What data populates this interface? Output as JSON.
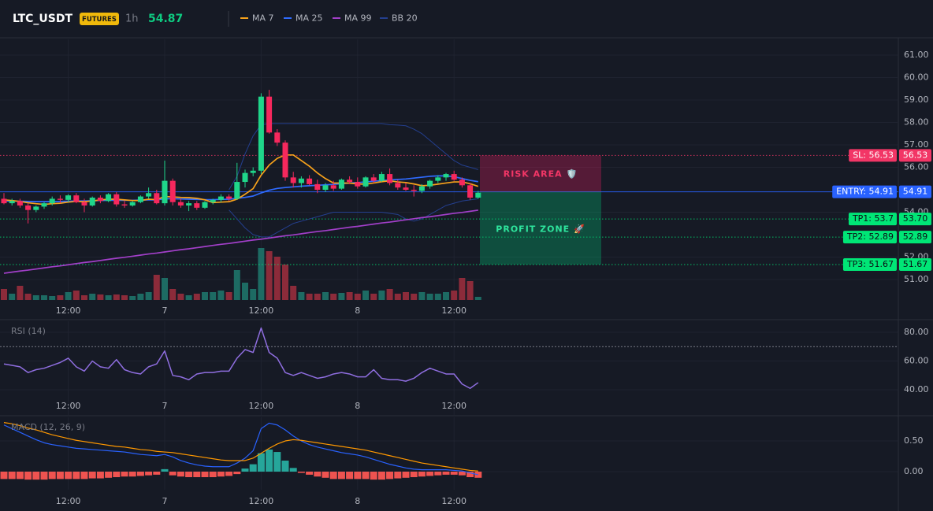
{
  "header": {
    "symbol": "LTC_USDT",
    "market": "FUTURES",
    "interval": "1h",
    "last_price": 54.87
  },
  "chart_data": [
    {
      "type": "candlestick",
      "categories": [
        null,
        null,
        null,
        null,
        null,
        null,
        null,
        null,
        "12:00",
        null,
        null,
        null,
        null,
        null,
        null,
        null,
        null,
        null,
        null,
        null,
        "7",
        null,
        null,
        null,
        null,
        null,
        null,
        null,
        null,
        null,
        null,
        null,
        "12:00",
        null,
        null,
        null,
        null,
        null,
        null,
        null,
        null,
        null,
        null,
        null,
        "8",
        null,
        null,
        null,
        null,
        null,
        null,
        null,
        null,
        null,
        null,
        null,
        "12:00",
        null,
        null,
        null
      ],
      "open": [
        54.6,
        54.4,
        54.5,
        54.3,
        54.1,
        54.25,
        54.4,
        54.6,
        54.55,
        54.75,
        54.45,
        54.3,
        54.65,
        54.5,
        54.8,
        54.35,
        54.3,
        54.45,
        54.7,
        54.85,
        54.4,
        55.4,
        54.45,
        54.3,
        54.4,
        54.2,
        54.45,
        54.55,
        54.7,
        54.6,
        55.35,
        55.75,
        55.85,
        59.15,
        57.55,
        57.1,
        55.55,
        55.3,
        55.5,
        55.25,
        55.0,
        55.2,
        55.05,
        55.45,
        55.35,
        55.15,
        55.55,
        55.4,
        55.7,
        55.3,
        55.1,
        55.0,
        54.95,
        55.15,
        55.4,
        55.55,
        55.7,
        55.45,
        55.2,
        54.65
      ],
      "high": [
        54.85,
        54.6,
        54.6,
        54.4,
        54.3,
        54.45,
        54.7,
        54.75,
        54.8,
        54.85,
        54.6,
        54.7,
        54.75,
        54.85,
        54.9,
        54.5,
        54.5,
        54.75,
        55.1,
        55.0,
        56.3,
        55.5,
        54.6,
        54.5,
        54.5,
        54.5,
        54.6,
        54.8,
        54.8,
        56.2,
        55.9,
        56.0,
        59.3,
        59.45,
        57.7,
        57.2,
        55.8,
        55.6,
        55.65,
        55.45,
        55.3,
        55.4,
        55.5,
        55.6,
        55.55,
        55.6,
        55.7,
        55.8,
        55.95,
        55.45,
        55.3,
        55.2,
        55.25,
        55.45,
        55.65,
        55.75,
        55.85,
        55.55,
        55.3,
        54.95
      ],
      "low": [
        54.35,
        54.3,
        54.2,
        53.5,
        54.0,
        54.15,
        54.3,
        54.4,
        54.45,
        54.4,
        54.0,
        54.25,
        54.4,
        54.45,
        54.25,
        54.2,
        54.25,
        54.4,
        54.6,
        54.35,
        54.3,
        54.3,
        54.2,
        54.05,
        54.1,
        54.15,
        54.35,
        54.45,
        54.5,
        54.55,
        55.1,
        55.6,
        55.7,
        57.5,
        56.95,
        55.4,
        55.1,
        55.1,
        55.2,
        54.85,
        54.9,
        54.95,
        55.0,
        55.25,
        55.05,
        55.1,
        55.3,
        55.35,
        55.2,
        55.0,
        54.95,
        54.7,
        54.85,
        55.05,
        55.3,
        55.4,
        55.4,
        55.1,
        54.55,
        54.6
      ],
      "close": [
        54.4,
        54.5,
        54.3,
        54.1,
        54.25,
        54.4,
        54.6,
        54.55,
        54.75,
        54.45,
        54.3,
        54.65,
        54.5,
        54.8,
        54.35,
        54.3,
        54.45,
        54.7,
        54.85,
        54.4,
        55.4,
        54.45,
        54.3,
        54.4,
        54.2,
        54.45,
        54.55,
        54.7,
        54.6,
        55.35,
        55.75,
        55.85,
        59.15,
        57.55,
        57.1,
        55.55,
        55.3,
        55.5,
        55.25,
        55.0,
        55.2,
        55.05,
        55.45,
        55.35,
        55.15,
        55.55,
        55.4,
        55.7,
        55.3,
        55.1,
        55.0,
        54.95,
        55.15,
        55.4,
        55.55,
        55.7,
        55.45,
        55.2,
        54.65,
        54.87
      ],
      "volume": [
        14,
        8,
        18,
        8,
        6,
        6,
        5,
        6,
        10,
        12,
        6,
        8,
        7,
        6,
        7,
        6,
        5,
        8,
        10,
        32,
        28,
        14,
        8,
        6,
        8,
        10,
        10,
        12,
        10,
        38,
        22,
        14,
        66,
        62,
        55,
        45,
        18,
        10,
        8,
        8,
        10,
        8,
        9,
        10,
        8,
        12,
        8,
        12,
        14,
        8,
        10,
        8,
        10,
        8,
        8,
        10,
        12,
        28,
        24,
        4
      ],
      "up_color": "#1fd68a",
      "down_color": "#f6285d",
      "volume_up_color": "#1d6b63",
      "volume_down_color": "#8c2b3a",
      "series": [
        {
          "name": "MA 7",
          "color": "#f7a21b",
          "values": [
            54.55,
            54.52,
            54.48,
            54.42,
            54.38,
            54.35,
            54.38,
            54.4,
            54.45,
            54.48,
            54.47,
            54.5,
            54.55,
            54.58,
            54.58,
            54.55,
            54.52,
            54.52,
            54.58,
            54.56,
            54.7,
            54.68,
            54.66,
            54.65,
            54.62,
            54.55,
            54.43,
            54.45,
            54.47,
            54.58,
            54.8,
            55.05,
            55.65,
            56.1,
            56.4,
            56.55,
            56.55,
            56.3,
            56.05,
            55.75,
            55.5,
            55.3,
            55.3,
            55.3,
            55.26,
            55.25,
            55.3,
            55.36,
            55.4,
            55.35,
            55.32,
            55.26,
            55.18,
            55.2,
            55.25,
            55.3,
            55.35,
            55.35,
            55.27,
            55.15
          ]
        },
        {
          "name": "MA 25",
          "color": "#2f6bff",
          "values": [
            54.5,
            54.5,
            54.49,
            54.48,
            54.47,
            54.47,
            54.47,
            54.48,
            54.49,
            54.5,
            54.5,
            54.51,
            54.52,
            54.53,
            54.53,
            54.53,
            54.53,
            54.54,
            54.55,
            54.55,
            54.6,
            54.6,
            54.59,
            54.58,
            54.57,
            54.56,
            54.56,
            54.57,
            54.58,
            54.62,
            54.66,
            54.72,
            54.86,
            54.98,
            55.06,
            55.1,
            55.13,
            55.16,
            55.18,
            55.2,
            55.22,
            55.24,
            55.27,
            55.3,
            55.32,
            55.35,
            55.38,
            55.41,
            55.44,
            55.46,
            55.48,
            55.52,
            55.56,
            55.6,
            55.62,
            55.62,
            55.58,
            55.5,
            55.42,
            55.36
          ]
        },
        {
          "name": "MA 99",
          "color": "#a23fc9",
          "values": [
            51.28,
            51.33,
            51.38,
            51.42,
            51.47,
            51.52,
            51.57,
            51.61,
            51.66,
            51.71,
            51.76,
            51.8,
            51.85,
            51.9,
            51.95,
            51.99,
            52.04,
            52.09,
            52.14,
            52.18,
            52.23,
            52.28,
            52.33,
            52.37,
            52.42,
            52.47,
            52.52,
            52.57,
            52.61,
            52.66,
            52.71,
            52.76,
            52.8,
            52.85,
            52.9,
            52.95,
            52.99,
            53.04,
            53.09,
            53.14,
            53.18,
            53.23,
            53.28,
            53.33,
            53.37,
            53.42,
            53.47,
            53.52,
            53.56,
            53.61,
            53.66,
            53.71,
            53.76,
            53.8,
            53.85,
            53.9,
            53.95,
            53.99,
            54.04,
            54.09
          ]
        },
        {
          "name": "BB 20",
          "color": "#243f8f",
          "values": [
            null,
            null,
            null,
            null,
            null,
            null,
            null,
            null,
            null,
            null,
            null,
            null,
            null,
            null,
            null,
            null,
            null,
            null,
            null,
            null,
            null,
            null,
            null,
            null,
            null,
            null,
            null,
            null,
            55.0,
            55.6,
            56.6,
            57.4,
            57.9,
            57.95,
            57.95,
            57.95,
            57.95,
            57.95,
            57.95,
            57.95,
            57.95,
            57.95,
            57.95,
            57.95,
            57.95,
            57.95,
            57.95,
            57.95,
            57.9,
            57.88,
            57.85,
            57.7,
            57.5,
            57.2,
            56.9,
            56.6,
            56.3,
            56.1,
            56.0,
            55.9
          ],
          "lower": [
            null,
            null,
            null,
            null,
            null,
            null,
            null,
            null,
            null,
            null,
            null,
            null,
            null,
            null,
            null,
            null,
            null,
            null,
            null,
            null,
            null,
            null,
            null,
            null,
            null,
            null,
            null,
            null,
            54.1,
            53.7,
            53.3,
            53.0,
            52.9,
            52.9,
            53.1,
            53.3,
            53.5,
            53.6,
            53.7,
            53.8,
            53.9,
            54.0,
            54.0,
            54.0,
            54.0,
            54.0,
            54.0,
            54.0,
            53.95,
            53.9,
            53.7,
            53.6,
            53.7,
            53.9,
            54.1,
            54.3,
            54.4,
            54.5,
            54.55,
            54.6
          ]
        }
      ],
      "levels": [
        {
          "name": "SL: 56.53",
          "value": 56.53,
          "value_label": "56.53",
          "color": "#f23666",
          "text_color": "#ffffff",
          "style": "dotted"
        },
        {
          "name": "ENTRY: 54.91",
          "value": 54.91,
          "value_label": "54.91",
          "color": "#2962ff",
          "text_color": "#ffffff",
          "style": "solid"
        },
        {
          "name": "TP1: 53.7",
          "value": 53.7,
          "value_label": "53.70",
          "color": "#00e676",
          "text_color": "#0b0e14",
          "style": "dotted"
        },
        {
          "name": "TP2: 52.89",
          "value": 52.89,
          "value_label": "52.89",
          "color": "#00e676",
          "text_color": "#0b0e14",
          "style": "dotted"
        },
        {
          "name": "TP3: 51.67",
          "value": 51.67,
          "value_label": "51.67",
          "color": "#00e676",
          "text_color": "#0b0e14",
          "style": "dotted"
        }
      ],
      "zones": [
        {
          "label": "RISK AREA 🛡️",
          "from": 56.53,
          "to": 54.91,
          "color": "#e91e63",
          "text_color": "#f23666"
        },
        {
          "label": "PROFIT ZONE 🚀",
          "from": 54.91,
          "to": 51.67,
          "color": "#00c87a",
          "text_color": "#2ee59d"
        }
      ],
      "ylim": [
        50.02,
        61.7
      ],
      "yticks": [
        {
          "value": 51,
          "label": "51.00"
        },
        {
          "value": 52,
          "label": "52.00"
        },
        {
          "value": 54,
          "label": "54.00"
        },
        {
          "value": 56,
          "label": "56.00"
        },
        {
          "value": 57,
          "label": "57.00"
        },
        {
          "value": 58,
          "label": "58.00"
        },
        {
          "value": 59,
          "label": "59.00"
        },
        {
          "value": 60,
          "label": "60.00"
        },
        {
          "value": 61,
          "label": "61.00"
        }
      ],
      "grid": true
    },
    {
      "type": "line",
      "title": "RSI (14)",
      "color": "#8f6ee0",
      "values": [
        58,
        57,
        56,
        52,
        54,
        55,
        57,
        59,
        62,
        56,
        53,
        60,
        56,
        55,
        61,
        54,
        52,
        51,
        56,
        58,
        67,
        50,
        49,
        47,
        51,
        52,
        52,
        53,
        53,
        62,
        68,
        66,
        83,
        66,
        62,
        52,
        50,
        52,
        50,
        48,
        49,
        51,
        52,
        51,
        49,
        49,
        54,
        48,
        47,
        47,
        46,
        48,
        52,
        55,
        53,
        51,
        51,
        44,
        41,
        45
      ],
      "hline": 70,
      "ylim": [
        22.5,
        87.7
      ],
      "yticks": [
        {
          "value": 80,
          "label": "80.00"
        },
        {
          "value": 60,
          "label": "60.00"
        },
        {
          "value": 40,
          "label": "40.00"
        }
      ],
      "grid": true
    },
    {
      "type": "macd",
      "title": "MACD (12, 26, 9)",
      "series": [
        {
          "color": "#2962ff",
          "values": [
            0.76,
            0.7,
            0.64,
            0.58,
            0.52,
            0.47,
            0.44,
            0.42,
            0.4,
            0.38,
            0.37,
            0.36,
            0.35,
            0.34,
            0.33,
            0.32,
            0.3,
            0.28,
            0.27,
            0.26,
            0.28,
            0.24,
            0.18,
            0.14,
            0.11,
            0.09,
            0.08,
            0.08,
            0.08,
            0.14,
            0.22,
            0.34,
            0.7,
            0.79,
            0.76,
            0.68,
            0.58,
            0.5,
            0.44,
            0.4,
            0.37,
            0.34,
            0.31,
            0.29,
            0.27,
            0.24,
            0.2,
            0.16,
            0.12,
            0.09,
            0.06,
            0.04,
            0.03,
            0.03,
            0.03,
            0.03,
            0.02,
            0.01,
            -0.02,
            -0.05
          ]
        },
        {
          "color": "#ff9800",
          "values": [
            0.8,
            0.78,
            0.75,
            0.71,
            0.68,
            0.64,
            0.6,
            0.57,
            0.54,
            0.51,
            0.49,
            0.47,
            0.45,
            0.43,
            0.41,
            0.4,
            0.38,
            0.36,
            0.35,
            0.33,
            0.32,
            0.31,
            0.29,
            0.27,
            0.25,
            0.23,
            0.21,
            0.19,
            0.18,
            0.18,
            0.18,
            0.22,
            0.3,
            0.38,
            0.45,
            0.5,
            0.52,
            0.51,
            0.49,
            0.47,
            0.45,
            0.43,
            0.41,
            0.39,
            0.37,
            0.35,
            0.32,
            0.29,
            0.26,
            0.23,
            0.2,
            0.17,
            0.14,
            0.12,
            0.1,
            0.08,
            0.06,
            0.04,
            0.02,
            0.01
          ]
        }
      ],
      "histogram": {
        "up_color": "#26a69a",
        "down_color": "#ef5350",
        "values": [
          -0.12,
          -0.12,
          -0.12,
          -0.13,
          -0.13,
          -0.13,
          -0.12,
          -0.12,
          -0.12,
          -0.12,
          -0.12,
          -0.11,
          -0.11,
          -0.1,
          -0.09,
          -0.08,
          -0.08,
          -0.07,
          -0.06,
          -0.05,
          0.04,
          -0.06,
          -0.08,
          -0.09,
          -0.09,
          -0.09,
          -0.09,
          -0.08,
          -0.07,
          -0.04,
          0.05,
          0.12,
          0.3,
          0.36,
          0.32,
          0.18,
          0.06,
          -0.02,
          -0.05,
          -0.08,
          -0.1,
          -0.12,
          -0.12,
          -0.12,
          -0.12,
          -0.12,
          -0.13,
          -0.13,
          -0.12,
          -0.11,
          -0.1,
          -0.09,
          -0.08,
          -0.07,
          -0.06,
          -0.05,
          -0.05,
          -0.06,
          -0.09,
          -0.1
        ]
      },
      "ylim": [
        -0.295,
        0.885
      ],
      "yticks": [
        {
          "value": 0.5,
          "label": "0.50"
        },
        {
          "value": 0,
          "label": "0.00"
        }
      ],
      "grid": true
    }
  ]
}
